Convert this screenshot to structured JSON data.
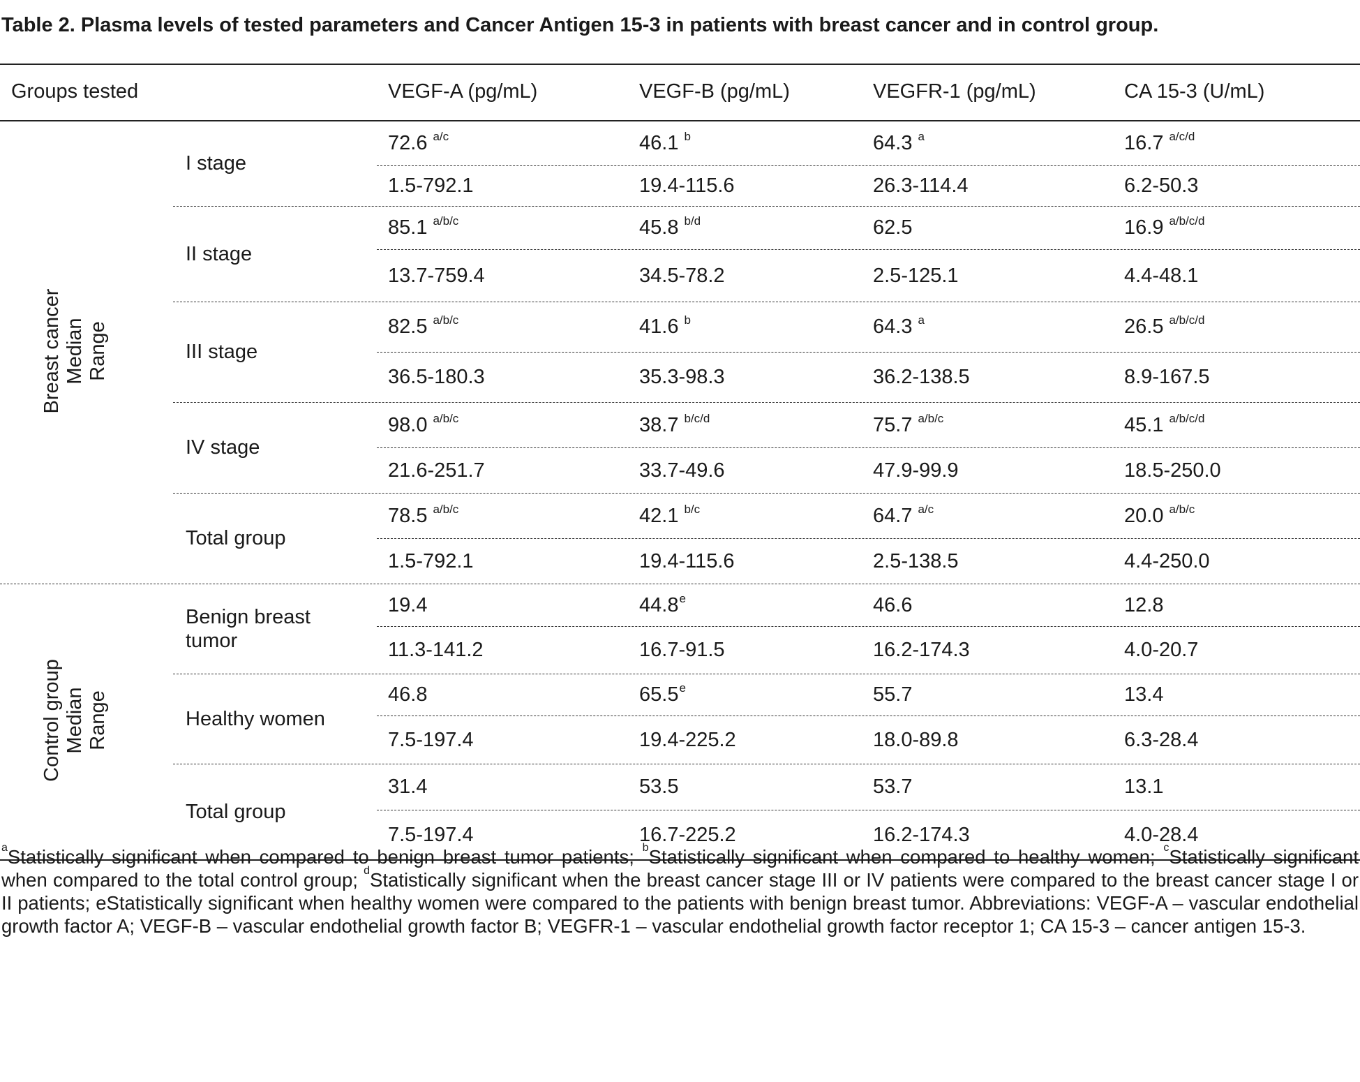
{
  "title": "Table 2. Plasma levels of tested parameters and Cancer Antigen 15-3 in patients with breast cancer and in control group.",
  "header": {
    "groups": "Groups tested",
    "c1": "VEGF-A (pg/mL)",
    "c2": "VEGF-B (pg/mL)",
    "c3": "VEGFR-1 (pg/mL)",
    "c4": "CA 15-3 (U/mL)"
  },
  "sections": {
    "breast": {
      "line1": "Breast cancer",
      "line2": "Median",
      "line3": "Range"
    },
    "control": {
      "line1": "Control group",
      "line2": "Median",
      "line3": "Range"
    }
  },
  "rows": [
    {
      "label": "I stage",
      "median": [
        {
          "v": "72.6",
          "s": "a/c"
        },
        {
          "v": "46.1",
          "s": "b"
        },
        {
          "v": "64.3",
          "s": "a"
        },
        {
          "v": "16.7",
          "s": "a/c/d"
        }
      ],
      "range": [
        "1.5-792.1",
        "19.4-115.6",
        "26.3-114.4",
        "6.2-50.3"
      ]
    },
    {
      "label": "II stage",
      "median": [
        {
          "v": "85.1",
          "s": "a/b/c"
        },
        {
          "v": "45.8",
          "s": "b/d"
        },
        {
          "v": "62.5",
          "s": ""
        },
        {
          "v": "16.9",
          "s": "a/b/c/d"
        }
      ],
      "range": [
        "13.7-759.4",
        "34.5-78.2",
        "2.5-125.1",
        "4.4-48.1"
      ]
    },
    {
      "label": "III stage",
      "median": [
        {
          "v": "82.5",
          "s": "a/b/c"
        },
        {
          "v": "41.6",
          "s": "b"
        },
        {
          "v": "64.3",
          "s": "a"
        },
        {
          "v": "26.5",
          "s": "a/b/c/d"
        }
      ],
      "range": [
        "36.5-180.3",
        "35.3-98.3",
        "36.2-138.5",
        "8.9-167.5"
      ]
    },
    {
      "label": "IV stage",
      "median": [
        {
          "v": "98.0",
          "s": "a/b/c"
        },
        {
          "v": "38.7",
          "s": "b/c/d"
        },
        {
          "v": "75.7",
          "s": "a/b/c"
        },
        {
          "v": "45.1",
          "s": "a/b/c/d"
        }
      ],
      "range": [
        "21.6-251.7",
        "33.7-49.6",
        "47.9-99.9",
        "18.5-250.0"
      ]
    },
    {
      "label": "Total group",
      "median": [
        {
          "v": "78.5",
          "s": "a/b/c"
        },
        {
          "v": "42.1",
          "s": "b/c"
        },
        {
          "v": "64.7",
          "s": "a/c"
        },
        {
          "v": "20.0",
          "s": "a/b/c"
        }
      ],
      "range": [
        "1.5-792.1",
        "19.4-115.6",
        "2.5-138.5",
        "4.4-250.0"
      ]
    },
    {
      "label": "Benign breast tumor",
      "label_line1": "Benign breast",
      "label_line2": "tumor",
      "median": [
        {
          "v": "19.4",
          "s": ""
        },
        {
          "v": "44.8",
          "s": "e"
        },
        {
          "v": "46.6",
          "s": ""
        },
        {
          "v": "12.8",
          "s": ""
        }
      ],
      "range": [
        "11.3-141.2",
        "16.7-91.5",
        "16.2-174.3",
        "4.0-20.7"
      ]
    },
    {
      "label": "Healthy women",
      "median": [
        {
          "v": "46.8",
          "s": ""
        },
        {
          "v": "65.5",
          "s": "e"
        },
        {
          "v": "55.7",
          "s": ""
        },
        {
          "v": "13.4",
          "s": ""
        }
      ],
      "range": [
        "7.5-197.4",
        "19.4-225.2",
        "18.0-89.8",
        "6.3-28.4"
      ]
    },
    {
      "label": "Total group",
      "median": [
        {
          "v": "31.4",
          "s": ""
        },
        {
          "v": "53.5",
          "s": ""
        },
        {
          "v": "53.7",
          "s": ""
        },
        {
          "v": "13.1",
          "s": ""
        }
      ],
      "range": [
        "7.5-197.4",
        "16.7-225.2",
        "16.2-174.3",
        "4.0-28.4"
      ]
    }
  ],
  "footnote": {
    "a_mark": "a",
    "a_text": "Statistically significant when compared to benign breast tumor patients; ",
    "b_mark": "b",
    "b_text": "Statistically significant when compared to healthy women; ",
    "c_mark": "c",
    "c_text": "Statistically significant when compared to the total control group; ",
    "d_mark": "d",
    "d_text": "Statistically significant when the breast cancer stage III or IV patients were compared to the breast cancer stage I or II patients; ",
    "e_text": "eStatistically significant when healthy women were compared to the patients with benign breast tumor. Abbreviations: VEGF-A – vascular endothelial growth factor A; VEGF-B – vascular endothelial growth factor B; VEGFR-1 – vascular endothelial growth factor receptor 1; CA 15-3 – cancer antigen 15-3."
  }
}
